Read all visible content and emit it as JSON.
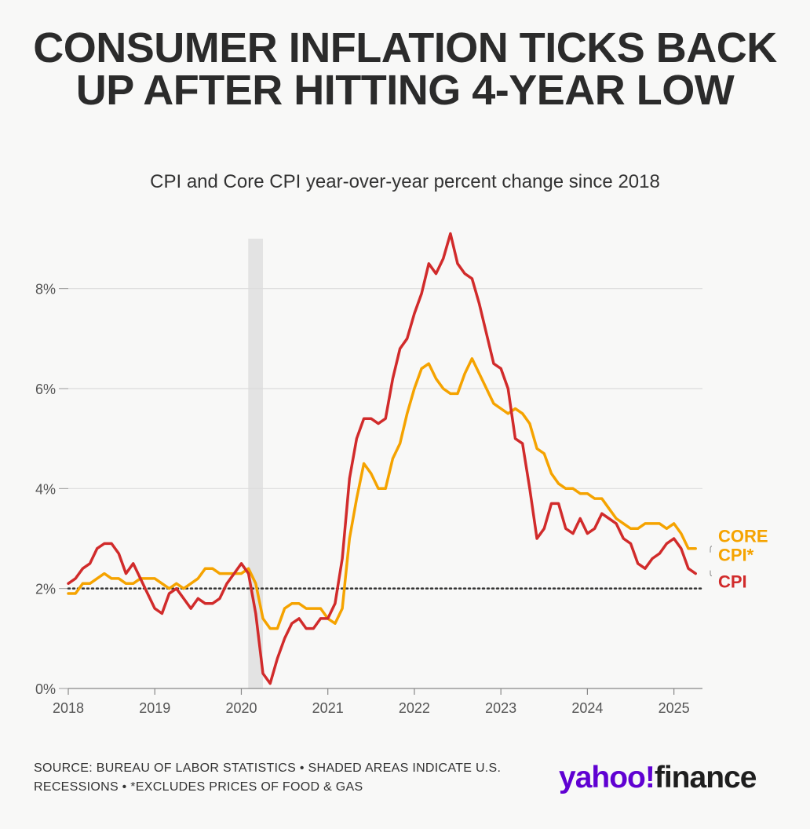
{
  "title": "CONSUMER INFLATION TICKS BACK UP AFTER HITTING 4-YEAR LOW",
  "subtitle": "CPI and Core CPI year-over-year percent change since 2018",
  "footer": "SOURCE: BUREAU OF LABOR STATISTICS • SHADED AREAS INDICATE U.S. RECESSIONS • *EXCLUDES PRICES OF FOOD & GAS",
  "logo": {
    "part1": "yahoo",
    "part2": "finance"
  },
  "colors": {
    "cpi": "#d12b2b",
    "core": "#f5a300",
    "recession": "#e3e3e3",
    "grid": "#dcdcdc",
    "text": "#555555"
  },
  "chart_data": {
    "type": "line",
    "title": "CONSUMER INFLATION TICKS BACK UP AFTER HITTING 4-YEAR LOW",
    "subtitle": "CPI and Core CPI year-over-year percent change since 2018",
    "xlabel": "",
    "ylabel": "",
    "xlim": [
      2018,
      2025.33
    ],
    "ylim": [
      0,
      9
    ],
    "x_ticks": [
      2018,
      2019,
      2020,
      2021,
      2022,
      2023,
      2024,
      2025
    ],
    "x_tick_labels": [
      "2018",
      "2019",
      "2020",
      "2021",
      "2022",
      "2023",
      "2024",
      "2025"
    ],
    "y_ticks": [
      0,
      2,
      4,
      6,
      8
    ],
    "y_tick_labels": [
      "0%",
      "2%",
      "4%",
      "6%",
      "8%"
    ],
    "grid": "horizontal",
    "reference_line": {
      "y": 2,
      "style": "dotted"
    },
    "recession_band": {
      "x0": 2020.08,
      "x1": 2020.25
    },
    "x_start": "2018-01",
    "x_step": "monthly",
    "series": [
      {
        "name": "CORE CPI*",
        "label_lines": [
          "CORE",
          "CPI*"
        ],
        "color": "#f5a300",
        "values": [
          1.9,
          1.9,
          2.1,
          2.1,
          2.2,
          2.3,
          2.2,
          2.2,
          2.1,
          2.1,
          2.2,
          2.2,
          2.2,
          2.1,
          2.0,
          2.1,
          2.0,
          2.1,
          2.2,
          2.4,
          2.4,
          2.3,
          2.3,
          2.3,
          2.3,
          2.4,
          2.1,
          1.4,
          1.2,
          1.2,
          1.6,
          1.7,
          1.7,
          1.6,
          1.6,
          1.6,
          1.4,
          1.3,
          1.6,
          3.0,
          3.8,
          4.5,
          4.3,
          4.0,
          4.0,
          4.6,
          4.9,
          5.5,
          6.0,
          6.4,
          6.5,
          6.2,
          6.0,
          5.9,
          5.9,
          6.3,
          6.6,
          6.3,
          6.0,
          5.7,
          5.6,
          5.5,
          5.6,
          5.5,
          5.3,
          4.8,
          4.7,
          4.3,
          4.1,
          4.0,
          4.0,
          3.9,
          3.9,
          3.8,
          3.8,
          3.6,
          3.4,
          3.3,
          3.2,
          3.2,
          3.3,
          3.3,
          3.3,
          3.2,
          3.3,
          3.1,
          2.8,
          2.8
        ]
      },
      {
        "name": "CPI",
        "label_lines": [
          "CPI"
        ],
        "color": "#d12b2b",
        "values": [
          2.1,
          2.2,
          2.4,
          2.5,
          2.8,
          2.9,
          2.9,
          2.7,
          2.3,
          2.5,
          2.2,
          1.9,
          1.6,
          1.5,
          1.9,
          2.0,
          1.8,
          1.6,
          1.8,
          1.7,
          1.7,
          1.8,
          2.1,
          2.3,
          2.5,
          2.3,
          1.5,
          0.3,
          0.1,
          0.6,
          1.0,
          1.3,
          1.4,
          1.2,
          1.2,
          1.4,
          1.4,
          1.7,
          2.6,
          4.2,
          5.0,
          5.4,
          5.4,
          5.3,
          5.4,
          6.2,
          6.8,
          7.0,
          7.5,
          7.9,
          8.5,
          8.3,
          8.6,
          9.1,
          8.5,
          8.3,
          8.2,
          7.7,
          7.1,
          6.5,
          6.4,
          6.0,
          5.0,
          4.9,
          4.0,
          3.0,
          3.2,
          3.7,
          3.7,
          3.2,
          3.1,
          3.4,
          3.1,
          3.2,
          3.5,
          3.4,
          3.3,
          3.0,
          2.9,
          2.5,
          2.4,
          2.6,
          2.7,
          2.9,
          3.0,
          2.8,
          2.4,
          2.3
        ]
      }
    ]
  }
}
